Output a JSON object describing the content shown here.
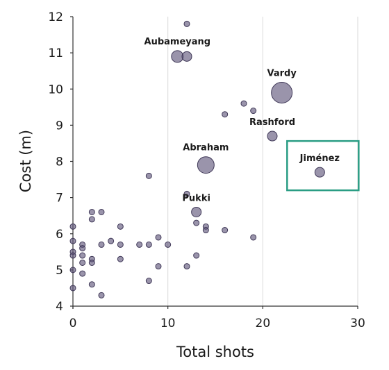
{
  "chart_data": {
    "type": "scatter",
    "xlabel": "Total shots",
    "ylabel": "Cost (m)",
    "xlim": [
      0,
      30
    ],
    "ylim": [
      4,
      12
    ],
    "x_ticks": [
      0,
      10,
      20,
      30
    ],
    "y_ticks": [
      4,
      5,
      6,
      7,
      8,
      9,
      10,
      11,
      12
    ],
    "grid": "vertical",
    "highlight_color": "#2a9d84",
    "point_color": "#5c5278",
    "points": [
      {
        "x": 12,
        "y": 11.8,
        "size": 1
      },
      {
        "x": 11,
        "y": 10.9,
        "size": 3,
        "label": "Aubameyang"
      },
      {
        "x": 12,
        "y": 10.9,
        "size": 2
      },
      {
        "x": 22,
        "y": 9.9,
        "size": 5,
        "label": "Vardy"
      },
      {
        "x": 18,
        "y": 9.6,
        "size": 1
      },
      {
        "x": 19,
        "y": 9.4,
        "size": 1
      },
      {
        "x": 16,
        "y": 9.3,
        "size": 1
      },
      {
        "x": 21,
        "y": 8.7,
        "size": 2,
        "label": "Rashford"
      },
      {
        "x": 14,
        "y": 7.9,
        "size": 4,
        "label": "Abraham"
      },
      {
        "x": 26,
        "y": 7.7,
        "size": 2,
        "label": "Jiménez",
        "highlight": true
      },
      {
        "x": 8,
        "y": 7.6,
        "size": 1
      },
      {
        "x": 12,
        "y": 7.1,
        "size": 1
      },
      {
        "x": 13,
        "y": 6.6,
        "size": 2,
        "label": "Pukki"
      },
      {
        "x": 2,
        "y": 6.6,
        "size": 1
      },
      {
        "x": 3,
        "y": 6.6,
        "size": 1
      },
      {
        "x": 2,
        "y": 6.4,
        "size": 1
      },
      {
        "x": 13,
        "y": 6.3,
        "size": 1
      },
      {
        "x": 14,
        "y": 6.2,
        "size": 1
      },
      {
        "x": 0,
        "y": 6.2,
        "size": 1
      },
      {
        "x": 5,
        "y": 6.2,
        "size": 1
      },
      {
        "x": 14,
        "y": 6.1,
        "size": 1
      },
      {
        "x": 16,
        "y": 6.1,
        "size": 1
      },
      {
        "x": 9,
        "y": 5.9,
        "size": 1
      },
      {
        "x": 19,
        "y": 5.9,
        "size": 1
      },
      {
        "x": 0,
        "y": 5.8,
        "size": 1
      },
      {
        "x": 4,
        "y": 5.8,
        "size": 1
      },
      {
        "x": 1,
        "y": 5.7,
        "size": 1
      },
      {
        "x": 3,
        "y": 5.7,
        "size": 1
      },
      {
        "x": 5,
        "y": 5.7,
        "size": 1
      },
      {
        "x": 7,
        "y": 5.7,
        "size": 1
      },
      {
        "x": 8,
        "y": 5.7,
        "size": 1
      },
      {
        "x": 10,
        "y": 5.7,
        "size": 1
      },
      {
        "x": 1,
        "y": 5.6,
        "size": 1
      },
      {
        "x": 0,
        "y": 5.5,
        "size": 1
      },
      {
        "x": 0,
        "y": 5.4,
        "size": 1
      },
      {
        "x": 1,
        "y": 5.4,
        "size": 1
      },
      {
        "x": 13,
        "y": 5.4,
        "size": 1
      },
      {
        "x": 2,
        "y": 5.3,
        "size": 1
      },
      {
        "x": 5,
        "y": 5.3,
        "size": 1
      },
      {
        "x": 1,
        "y": 5.2,
        "size": 1
      },
      {
        "x": 2,
        "y": 5.2,
        "size": 1
      },
      {
        "x": 9,
        "y": 5.1,
        "size": 1
      },
      {
        "x": 12,
        "y": 5.1,
        "size": 1
      },
      {
        "x": 0,
        "y": 5.0,
        "size": 1
      },
      {
        "x": 1,
        "y": 4.9,
        "size": 1
      },
      {
        "x": 8,
        "y": 4.7,
        "size": 1
      },
      {
        "x": 2,
        "y": 4.6,
        "size": 1
      },
      {
        "x": 0,
        "y": 4.5,
        "size": 1
      },
      {
        "x": 3,
        "y": 4.3,
        "size": 1
      }
    ]
  }
}
